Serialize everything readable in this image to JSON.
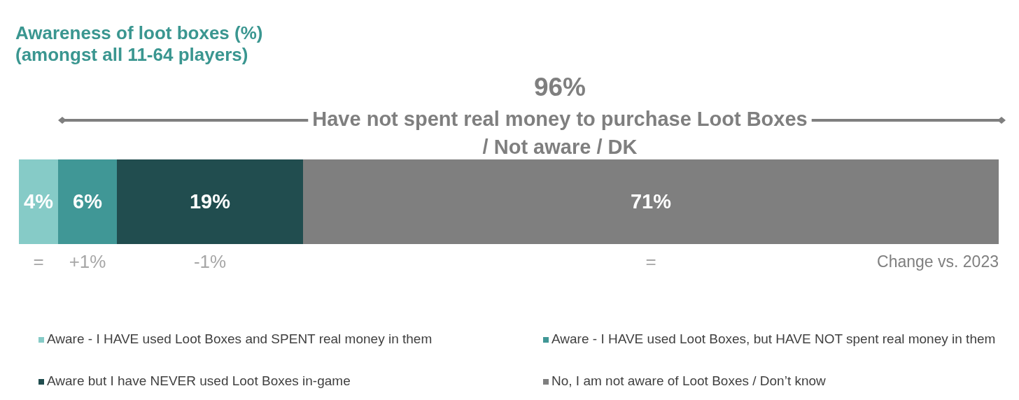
{
  "chart_data": {
    "type": "bar",
    "orientation": "horizontal",
    "stacked": true,
    "title": "Awareness of loot boxes (%)",
    "subtitle": "(amongst all 11-64 players)",
    "categories": [
      null
    ],
    "series": [
      {
        "name": "Aware - I HAVE used Loot Boxes and SPENT real money in them",
        "color": "#86cbc7",
        "values": [
          4
        ],
        "value_labels": [
          "4%"
        ]
      },
      {
        "name": "Aware - I HAVE used Loot Boxes, but HAVE NOT spent real money in them",
        "color": "#409796",
        "values": [
          6
        ],
        "value_labels": [
          "6%"
        ]
      },
      {
        "name": "Aware but I have NEVER used Loot Boxes in-game",
        "color": "#214d4f",
        "values": [
          19
        ],
        "value_labels": [
          "19%"
        ]
      },
      {
        "name": "No, I am not aware of Loot Boxes / Don’t know",
        "color": "#7f7f7f",
        "values": [
          71
        ],
        "value_labels": [
          "71%"
        ]
      }
    ],
    "tick_labels": false,
    "legend": "bottom",
    "annotations": [
      "96%",
      "Have not spent real money to purchase Loot Boxes / Not aware / DK",
      "=",
      "+1%",
      "-1%",
      "=",
      "Change vs. 2023"
    ]
  }
}
